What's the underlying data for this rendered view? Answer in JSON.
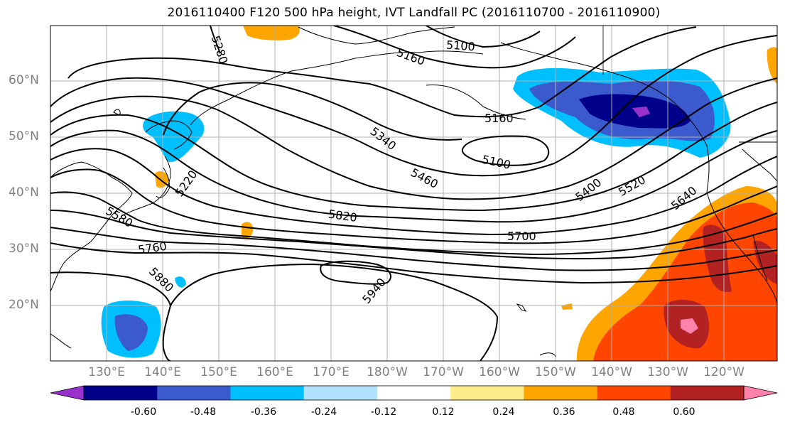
{
  "title": "2016110400 F120 500 hPa height, IVT Landfall PC (2016110700 - 2016110900)",
  "lat_labels": [
    "60°N",
    "50°N",
    "40°N",
    "30°N",
    "20°N"
  ],
  "lon_labels": [
    "130°E",
    "140°E",
    "150°E",
    "160°E",
    "170°E",
    "180°W",
    "170°W",
    "160°W",
    "150°W",
    "140°W",
    "130°W",
    "120°W"
  ],
  "colorbar": {
    "colors": [
      "#9932cc",
      "#00008b",
      "#3a5acd",
      "#00bfff",
      "#b0e2ff",
      "#ffffff",
      "#ffec8b",
      "#ffa500",
      "#ff4500",
      "#b22222",
      "#ff82ab"
    ],
    "tick_labels": [
      "-0.60",
      "-0.48",
      "-0.36",
      "-0.24",
      "-0.12",
      "0.12",
      "0.24",
      "0.36",
      "0.48",
      "0.60"
    ]
  },
  "contour_labels": [
    "5280",
    "5100",
    "5160",
    "5160",
    "5340",
    "5100",
    "5460",
    "5400",
    "5520",
    "5640",
    "5220",
    "5580",
    "5820",
    "5700",
    "5760",
    "5880",
    "5940"
  ]
}
